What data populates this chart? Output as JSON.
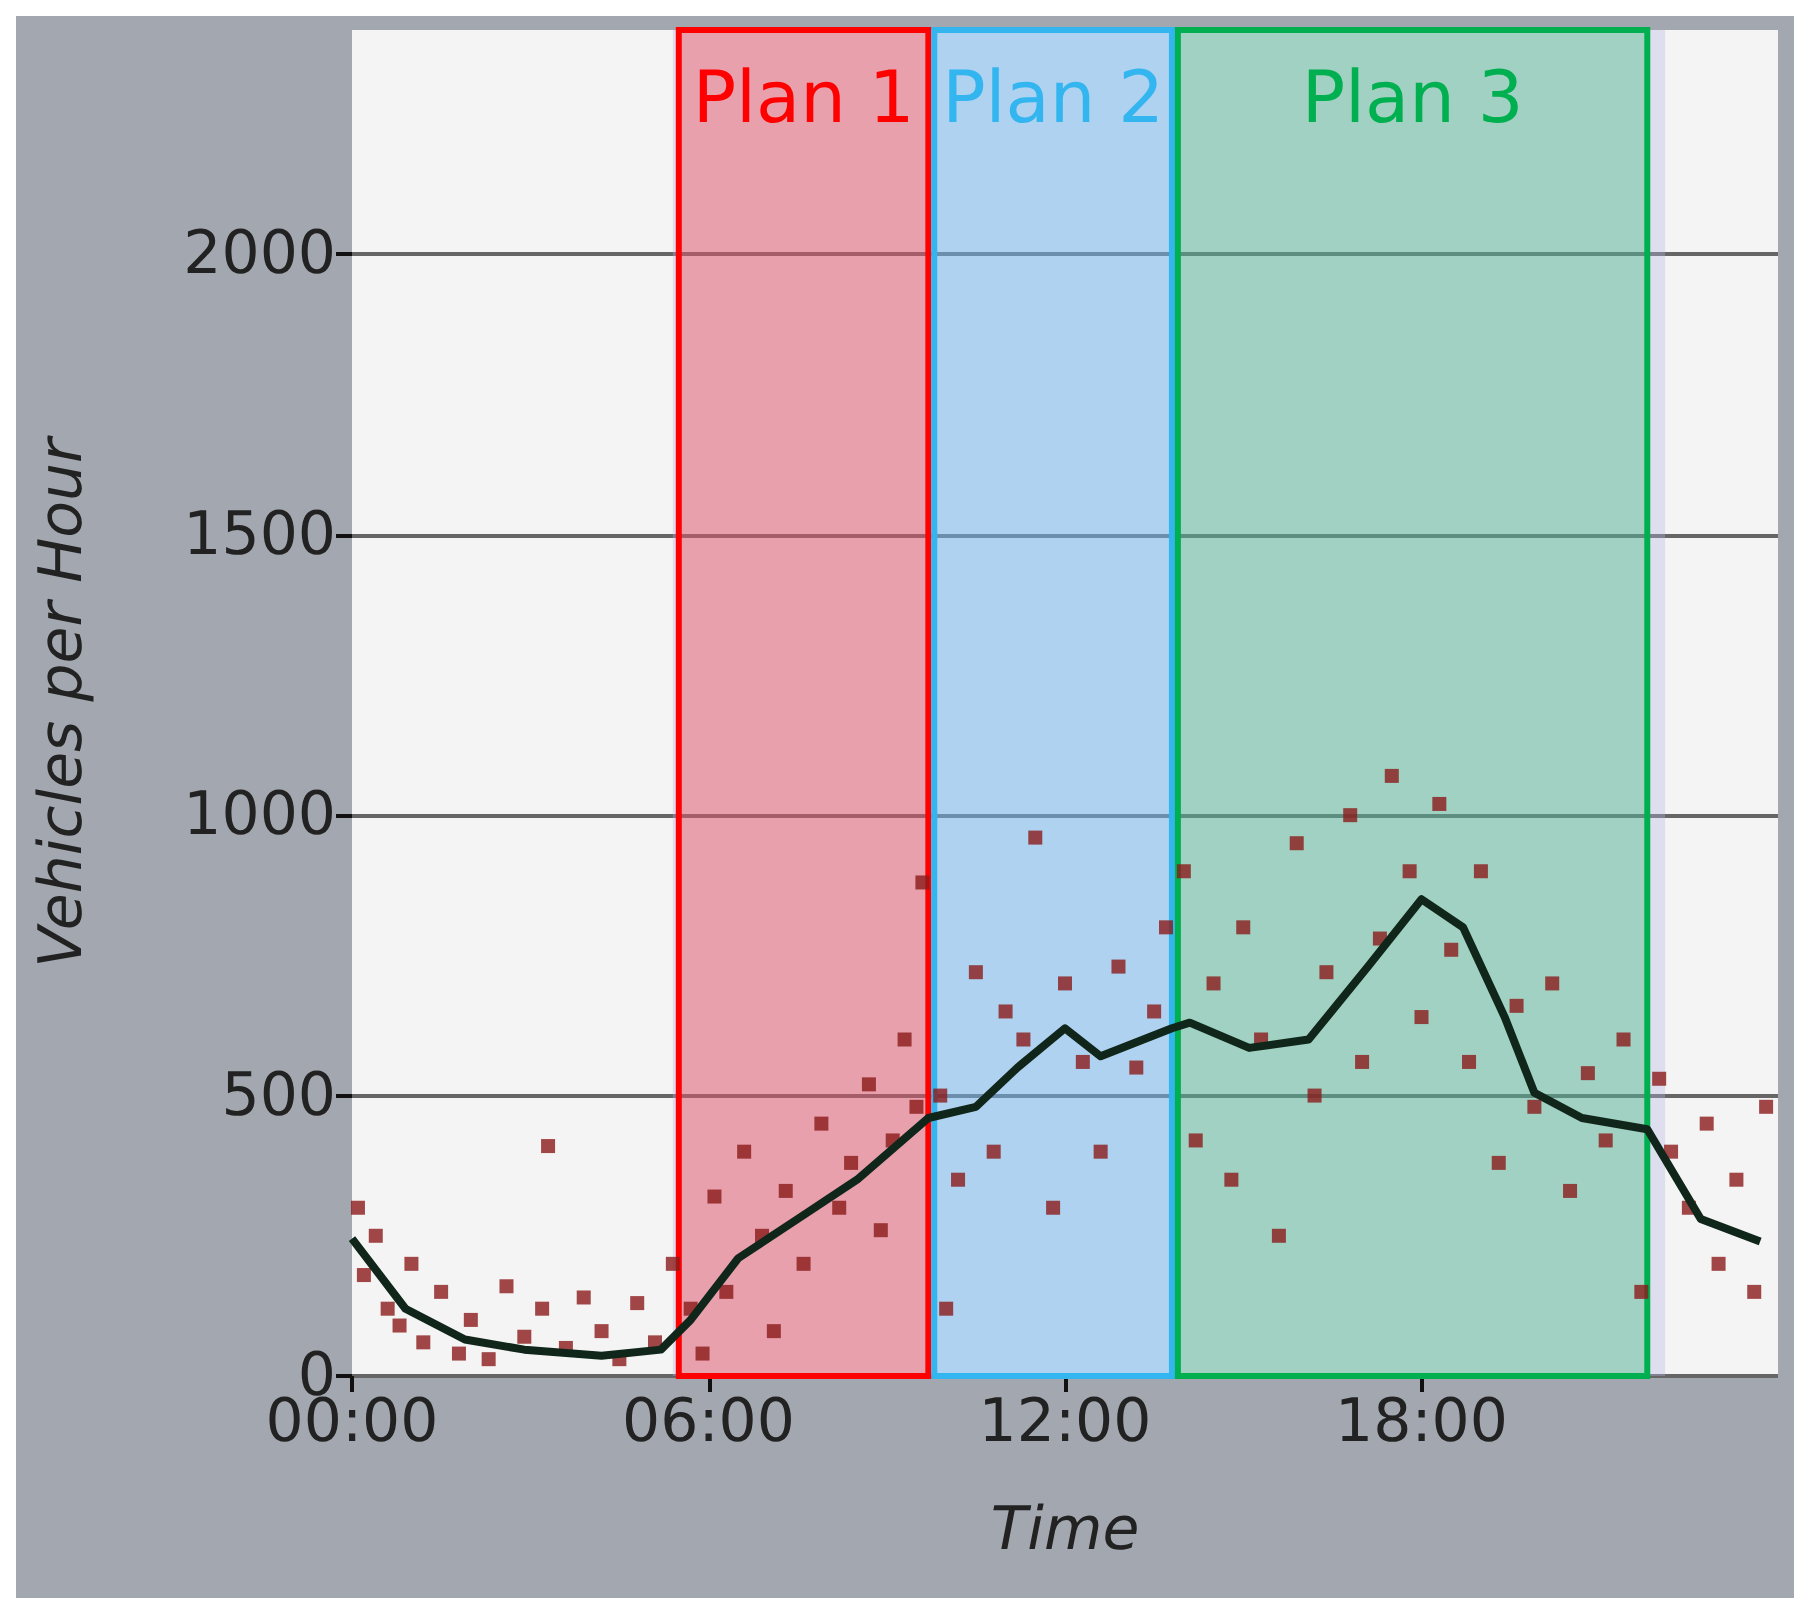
{
  "chart_data": {
    "type": "scatter",
    "xlabel": "Time",
    "ylabel": "Vehicles per Hour",
    "xlim": [
      0,
      24
    ],
    "ylim": [
      0,
      2400
    ],
    "xticks": [
      {
        "value": 0,
        "label": "00:00"
      },
      {
        "value": 6,
        "label": "06:00"
      },
      {
        "value": 12,
        "label": "12:00"
      },
      {
        "value": 18,
        "label": "18:00"
      }
    ],
    "yticks": [
      0,
      500,
      1000,
      1500,
      2000
    ],
    "grid": "y",
    "bands": [
      {
        "axis": "x",
        "from": 5.4,
        "to": 22.1,
        "label": null,
        "color": "#b4b4e6"
      },
      {
        "axis": "x",
        "from": 5.5,
        "to": 9.7,
        "label": "Plan 1",
        "color": "#ff0000"
      },
      {
        "axis": "x",
        "from": 9.8,
        "to": 13.8,
        "label": "Plan 2",
        "color": "#33b5f0"
      },
      {
        "axis": "x",
        "from": 13.9,
        "to": 21.8,
        "label": "Plan 3",
        "color": "#00b050"
      }
    ],
    "series": [
      {
        "type": "scatter",
        "marker": "square",
        "color": "#8b1a1a",
        "x": [
          0.1,
          0.2,
          0.4,
          0.6,
          0.8,
          1.0,
          1.2,
          1.5,
          1.8,
          2.0,
          2.3,
          2.6,
          2.9,
          3.2,
          3.3,
          3.6,
          3.9,
          4.2,
          4.5,
          4.8,
          5.1,
          5.4,
          5.7,
          5.9,
          6.1,
          6.3,
          6.6,
          6.9,
          7.1,
          7.3,
          7.6,
          7.9,
          8.2,
          8.4,
          8.7,
          8.9,
          9.1,
          9.3,
          9.5,
          9.6,
          9.9,
          10.0,
          10.2,
          10.5,
          10.8,
          11.0,
          11.3,
          11.5,
          11.8,
          12.0,
          12.3,
          12.6,
          12.9,
          13.2,
          13.5,
          13.7,
          14.0,
          14.2,
          14.5,
          14.8,
          15.0,
          15.3,
          15.6,
          15.9,
          16.2,
          16.4,
          16.8,
          17.0,
          17.3,
          17.5,
          17.8,
          18.0,
          18.3,
          18.5,
          18.8,
          19.0,
          19.3,
          19.6,
          19.9,
          20.2,
          20.5,
          20.8,
          21.1,
          21.4,
          21.7,
          22.0,
          22.2,
          22.5,
          22.8,
          23.0,
          23.3,
          23.6,
          23.8
        ],
        "values": [
          300,
          180,
          250,
          120,
          90,
          200,
          60,
          150,
          40,
          100,
          30,
          160,
          70,
          120,
          410,
          50,
          140,
          80,
          30,
          130,
          60,
          200,
          120,
          40,
          320,
          150,
          400,
          250,
          80,
          330,
          200,
          450,
          300,
          380,
          520,
          260,
          420,
          600,
          480,
          880,
          500,
          120,
          350,
          720,
          400,
          650,
          600,
          960,
          300,
          700,
          560,
          400,
          730,
          550,
          650,
          800,
          900,
          420,
          700,
          350,
          800,
          600,
          250,
          950,
          500,
          720,
          1000,
          560,
          780,
          1070,
          900,
          640,
          1020,
          760,
          560,
          900,
          380,
          660,
          480,
          700,
          330,
          540,
          420,
          600,
          150,
          530,
          400,
          300,
          450,
          200,
          350,
          150,
          480
        ]
      },
      {
        "type": "line",
        "marker": "none",
        "color": "#10261a",
        "x": [
          0,
          0.9,
          1.9,
          2.9,
          4.2,
          5.2,
          5.7,
          6.5,
          7.5,
          8.5,
          9.7,
          10.5,
          11.2,
          12.0,
          12.6,
          13.8,
          14.1,
          15.1,
          16.1,
          17.1,
          18.0,
          18.7,
          19.4,
          19.9,
          20.7,
          21.8,
          22.7,
          23.7
        ],
        "values": [
          245,
          120,
          65,
          47,
          36,
          47,
          100,
          210,
          280,
          350,
          460,
          480,
          550,
          620,
          570,
          620,
          630,
          585,
          600,
          730,
          850,
          800,
          640,
          505,
          460,
          440,
          280,
          240
        ]
      }
    ]
  }
}
